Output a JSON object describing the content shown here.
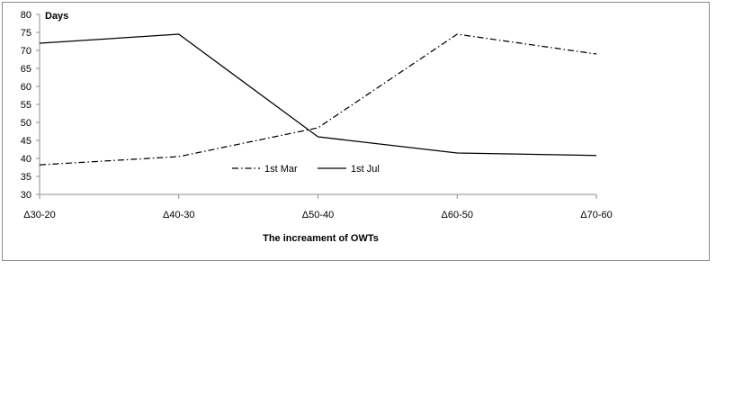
{
  "chart_data": {
    "type": "line",
    "title": "",
    "ylabel": "Days",
    "xlabel": "The increament  of OWTs",
    "categories": [
      "Δ30-20",
      "Δ40-30",
      "Δ50-40",
      "Δ60-50",
      "Δ70-60"
    ],
    "ylim": [
      30,
      80
    ],
    "yticks": [
      30,
      35,
      40,
      45,
      50,
      55,
      60,
      65,
      70,
      75,
      80
    ],
    "grid": false,
    "legend_position": "inside-bottom-center",
    "series": [
      {
        "name": "1st Mar",
        "values": [
          38.2,
          40.5,
          48.5,
          74.5,
          69.0
        ],
        "style": "dash-dot",
        "color": "#000000"
      },
      {
        "name": "1st Jul",
        "values": [
          72.0,
          74.5,
          46.0,
          41.5,
          40.8
        ],
        "style": "solid",
        "color": "#000000"
      }
    ]
  }
}
